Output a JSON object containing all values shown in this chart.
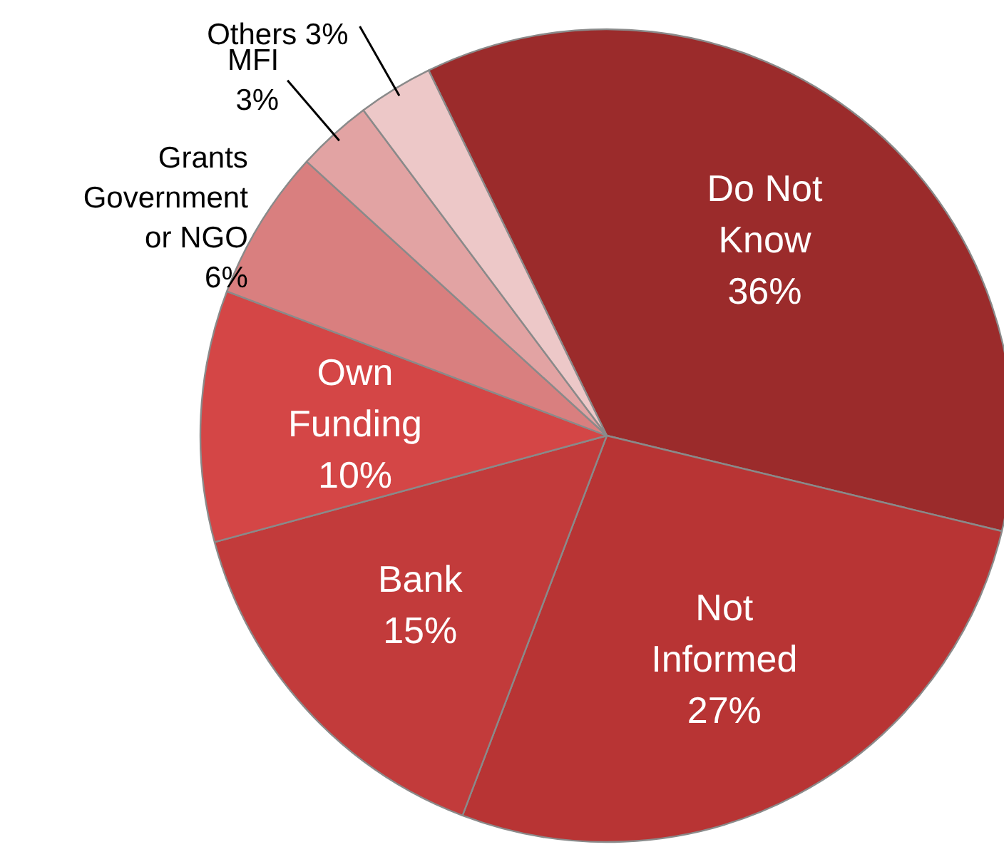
{
  "chart_data": {
    "type": "pie",
    "categories": [
      "Do Not Know",
      "Not Informed",
      "Bank",
      "Own Funding",
      "Grants Government or NGO",
      "MFI",
      "Others"
    ],
    "values": [
      36,
      27,
      15,
      10,
      6,
      3,
      3
    ],
    "colors": [
      "#9b2b2b",
      "#b83434",
      "#c23b3b",
      "#d44646",
      "#d97f7f",
      "#e2a3a3",
      "#edc8c8"
    ],
    "value_labels": [
      "36%",
      "27%",
      "15%",
      "10%",
      "6%",
      "3%",
      "3%"
    ]
  }
}
